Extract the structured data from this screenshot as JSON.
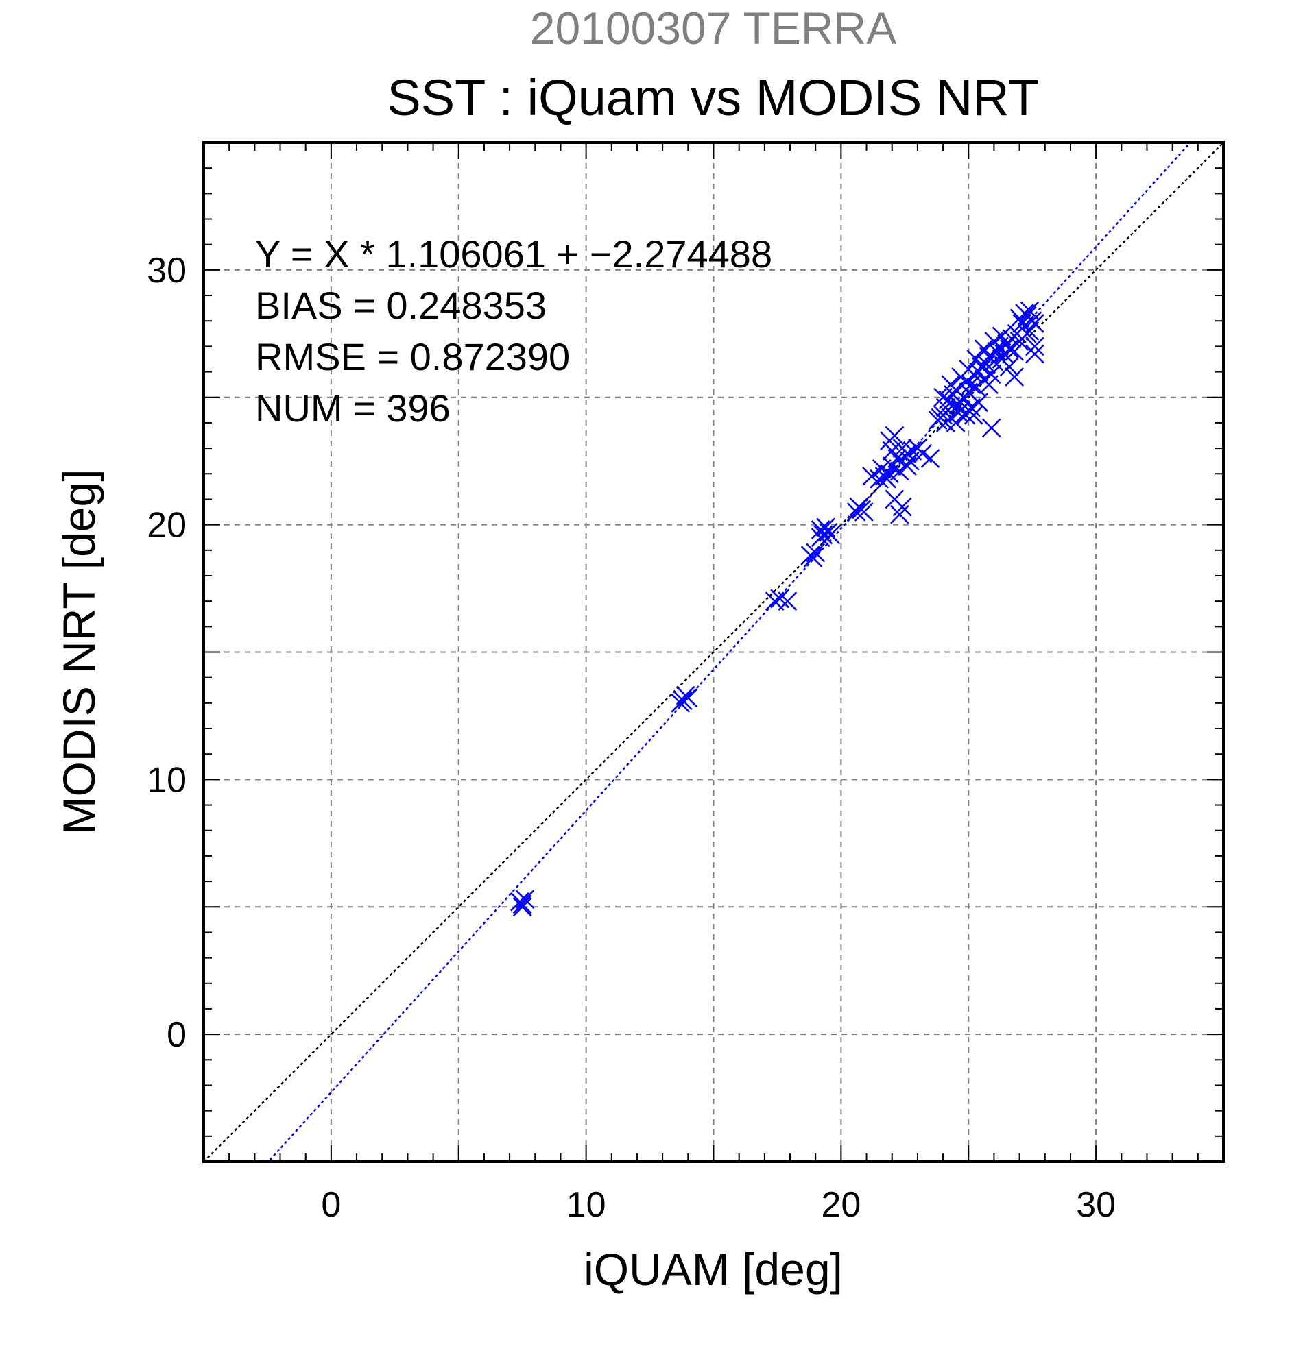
{
  "chart_data": {
    "type": "scatter",
    "title": "20100307 TERRA",
    "subtitle": "SST : iQuam vs MODIS NRT",
    "xlabel": "iQUAM [deg]",
    "ylabel": "MODIS NRT [deg]",
    "xlim": [
      -5,
      35
    ],
    "ylim": [
      -5,
      35
    ],
    "xticks": [
      0,
      10,
      20,
      30
    ],
    "yticks": [
      0,
      10,
      20,
      30
    ],
    "grid": true,
    "marker": "x",
    "colors": {
      "points": "#0000ff",
      "fit_line": "#0000ff",
      "identity_line": "#000000",
      "grid": "#808080",
      "title": "#7f7f7f"
    },
    "stats": {
      "fit": "Y = X * 1.106061 + −2.274488",
      "bias": "BIAS = 0.248353",
      "rmse": "RMSE = 0.872390",
      "num": "NUM = 396"
    },
    "fit_line": {
      "slope": 1.106061,
      "intercept": -2.274488
    },
    "identity_line": {
      "slope": 1,
      "intercept": 0
    },
    "points": [
      [
        7.5,
        5.1
      ],
      [
        7.6,
        5.3
      ],
      [
        7.4,
        5.2
      ],
      [
        7.5,
        5.0
      ],
      [
        13.8,
        13.1
      ],
      [
        14.0,
        13.2
      ],
      [
        13.9,
        13.3
      ],
      [
        13.7,
        13.0
      ],
      [
        17.4,
        17.0
      ],
      [
        17.6,
        17.1
      ],
      [
        17.9,
        17.0
      ],
      [
        18.8,
        18.8
      ],
      [
        18.9,
        18.7
      ],
      [
        19.0,
        18.9
      ],
      [
        19.2,
        19.8
      ],
      [
        19.3,
        19.6
      ],
      [
        19.5,
        19.7
      ],
      [
        19.4,
        19.9
      ],
      [
        19.6,
        19.6
      ],
      [
        19.2,
        19.5
      ],
      [
        20.6,
        20.5
      ],
      [
        20.8,
        20.6
      ],
      [
        20.9,
        20.5
      ],
      [
        20.7,
        20.7
      ],
      [
        21.2,
        21.9
      ],
      [
        21.5,
        21.8
      ],
      [
        21.7,
        21.9
      ],
      [
        21.9,
        22.0
      ],
      [
        21.6,
        22.2
      ],
      [
        21.8,
        21.8
      ],
      [
        22.0,
        22.3
      ],
      [
        22.2,
        22.6
      ],
      [
        22.0,
        22.9
      ],
      [
        22.4,
        23.0
      ],
      [
        22.6,
        22.8
      ],
      [
        21.9,
        23.3
      ],
      [
        22.1,
        23.5
      ],
      [
        22.3,
        22.1
      ],
      [
        22.6,
        22.3
      ],
      [
        22.1,
        21.0
      ],
      [
        22.3,
        20.4
      ],
      [
        22.4,
        20.7
      ],
      [
        22.8,
        22.9
      ],
      [
        23.0,
        23.0
      ],
      [
        23.2,
        22.8
      ],
      [
        23.5,
        22.6
      ],
      [
        22.7,
        22.5
      ],
      [
        23.8,
        24.1
      ],
      [
        24.0,
        24.3
      ],
      [
        24.1,
        24.6
      ],
      [
        24.0,
        25.0
      ],
      [
        24.3,
        24.2
      ],
      [
        24.2,
        24.9
      ],
      [
        24.4,
        25.1
      ],
      [
        24.5,
        25.3
      ],
      [
        24.6,
        24.7
      ],
      [
        24.3,
        25.5
      ],
      [
        24.8,
        25.0
      ],
      [
        24.9,
        25.6
      ],
      [
        24.7,
        25.8
      ],
      [
        24.6,
        24.4
      ],
      [
        24.5,
        24.0
      ],
      [
        24.7,
        24.5
      ],
      [
        24.9,
        24.3
      ],
      [
        25.0,
        25.2
      ],
      [
        25.1,
        25.5
      ],
      [
        25.2,
        25.9
      ],
      [
        25.3,
        25.4
      ],
      [
        25.0,
        26.1
      ],
      [
        25.1,
        24.6
      ],
      [
        25.4,
        26.0
      ],
      [
        25.5,
        26.2
      ],
      [
        25.6,
        25.7
      ],
      [
        25.3,
        26.5
      ],
      [
        25.2,
        24.3
      ],
      [
        25.4,
        24.8
      ],
      [
        25.7,
        26.3
      ],
      [
        25.8,
        26.6
      ],
      [
        25.9,
        25.9
      ],
      [
        25.6,
        26.9
      ],
      [
        25.8,
        25.5
      ],
      [
        25.0,
        24.5
      ],
      [
        26.0,
        26.4
      ],
      [
        26.1,
        26.8
      ],
      [
        26.2,
        27.0
      ],
      [
        26.3,
        26.5
      ],
      [
        26.0,
        27.2
      ],
      [
        25.9,
        23.8
      ],
      [
        26.4,
        26.7
      ],
      [
        26.5,
        27.1
      ],
      [
        26.6,
        26.9
      ],
      [
        26.3,
        27.4
      ],
      [
        26.7,
        27.3
      ],
      [
        26.6,
        26.2
      ],
      [
        26.8,
        26.8
      ],
      [
        26.9,
        27.5
      ],
      [
        27.0,
        27.2
      ],
      [
        26.8,
        25.8
      ],
      [
        27.1,
        27.9
      ],
      [
        27.0,
        28.1
      ],
      [
        27.2,
        27.8
      ],
      [
        27.3,
        28.2
      ],
      [
        27.4,
        27.6
      ],
      [
        27.2,
        28.3
      ],
      [
        27.5,
        28.0
      ],
      [
        27.4,
        28.4
      ],
      [
        27.6,
        27.9
      ],
      [
        27.3,
        27.5
      ],
      [
        27.6,
        27.0
      ],
      [
        27.6,
        26.7
      ],
      [
        24.1,
        24.0
      ],
      [
        23.9,
        24.2
      ]
    ]
  }
}
